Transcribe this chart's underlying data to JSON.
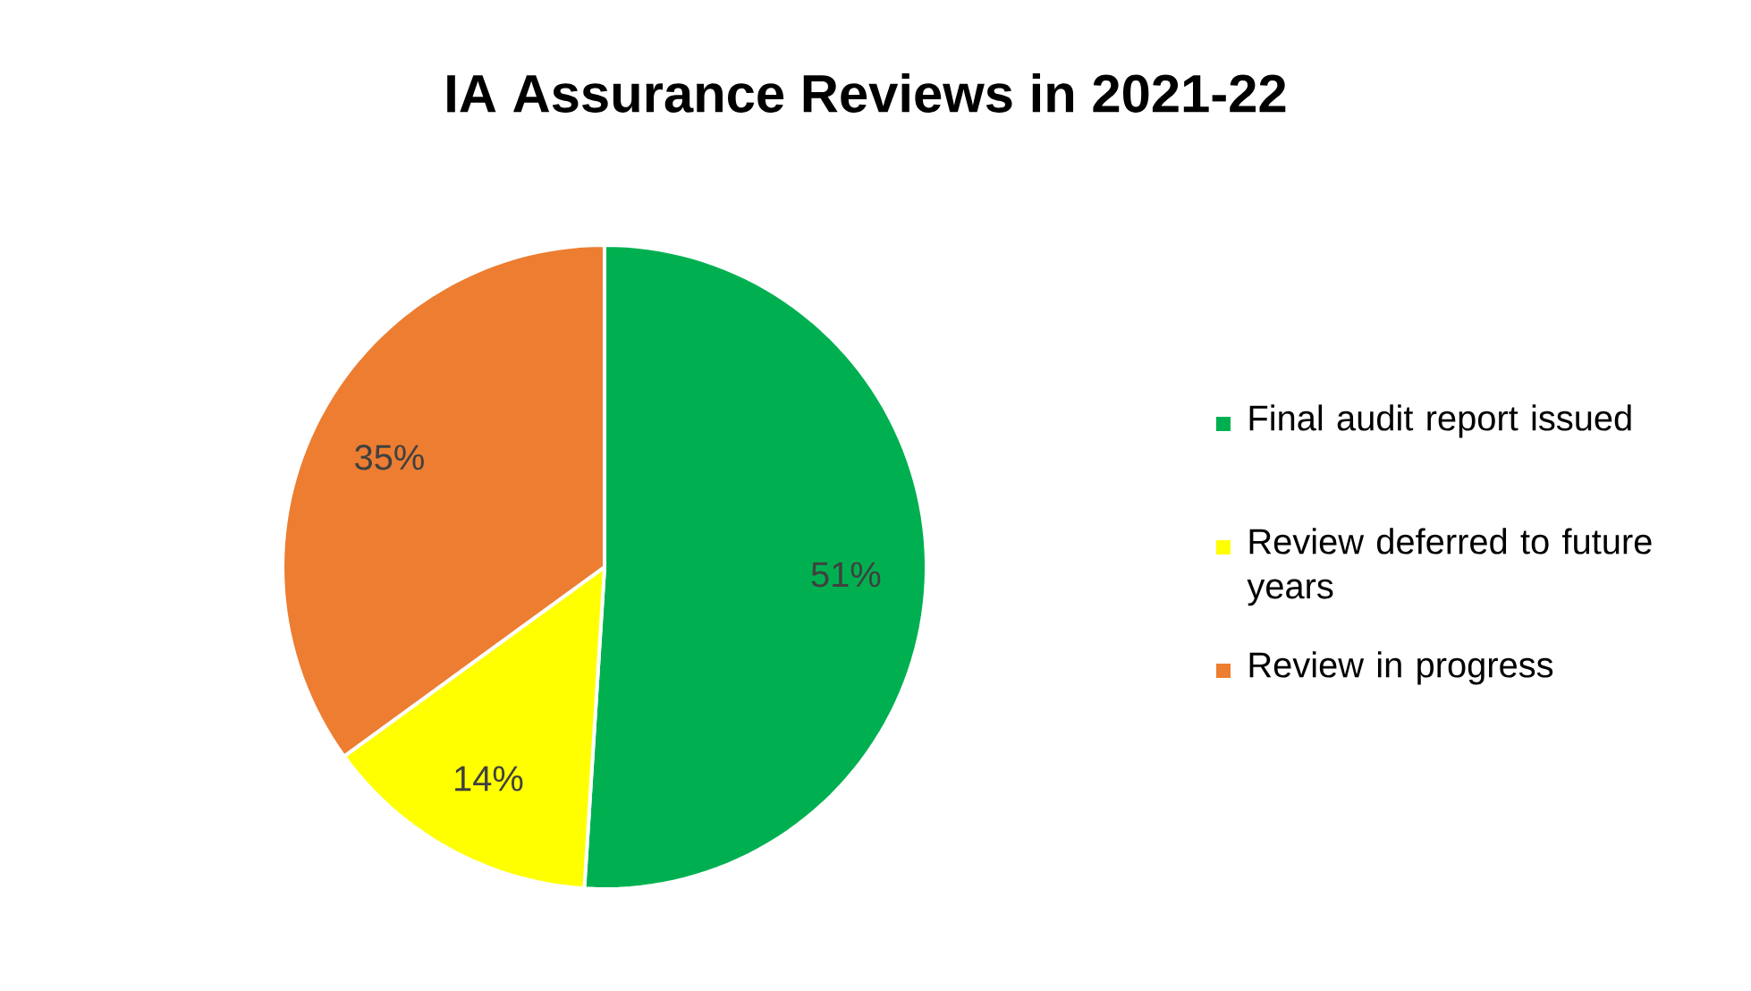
{
  "chart_data": {
    "type": "pie",
    "title": "IA Assurance Reviews in 2021-22",
    "categories": [
      "Final audit report issued",
      "Review deferred to future years",
      "Review in progress"
    ],
    "values": [
      51,
      14,
      35
    ],
    "colors": [
      "#00b050",
      "#ffff00",
      "#ed7d31"
    ],
    "value_labels": [
      "51%",
      "14%",
      "35%"
    ],
    "legend": "right"
  }
}
